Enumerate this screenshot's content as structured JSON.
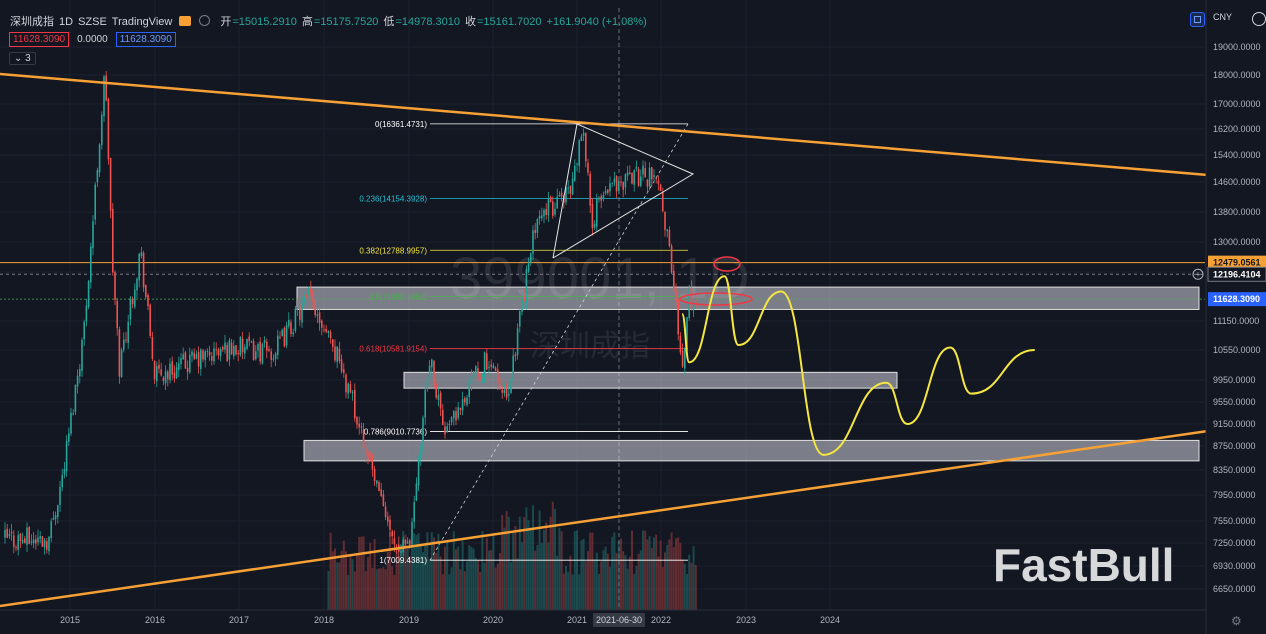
{
  "header": {
    "symbol": "深圳成指",
    "interval": "1D",
    "exchange": "SZSE",
    "platform": "TradingView",
    "open_label": "开",
    "open": "=15015.2910",
    "high_label": "高",
    "high": "=15175.7520",
    "low_label": "低",
    "low": "=14978.3010",
    "close_label": "收",
    "close": "=15161.7020",
    "change": "+161.9040 (+1.08%)"
  },
  "indicators": {
    "value1": "11628.3090",
    "value2": "0.0000",
    "value3": "11628.3090",
    "collapse_label": "3"
  },
  "currency": "CNY",
  "watermark": {
    "code": "399001",
    "interval": "1D",
    "name": "深圳成指"
  },
  "brand": "FastBull",
  "crosshair_date": "2021-06-30",
  "price_badges": [
    {
      "value": "12479.0561",
      "color": "#f7a035"
    },
    {
      "value": "12196.4104",
      "color": "#131722"
    },
    {
      "value": "11628.3090",
      "color": "#2962ff"
    }
  ],
  "colors": {
    "background": "#131722",
    "up": "#26a69a",
    "down": "#ef5350",
    "trendline": "#f7a035",
    "forecast": "#f5e642",
    "ellipse": "#f23645"
  },
  "chart_data": {
    "type": "candlestick",
    "y_axis_scale": "log",
    "ylim": [
      6400,
      20000
    ],
    "y_ticks": [
      "19000.0000",
      "18000.0000",
      "17000.0000",
      "16200.0000",
      "15400.0000",
      "14600.0000",
      "13800.0000",
      "13000.0000",
      "12250.0000",
      "11150.0000",
      "10550.0000",
      "9950.0000",
      "9550.0000",
      "9150.0000",
      "8750.0000",
      "8350.0000",
      "7950.0000",
      "7550.0000",
      "7250.0000",
      "6930.0000",
      "6650.0000"
    ],
    "x_labels": [
      "2015",
      "2016",
      "2017",
      "2018",
      "2019",
      "2020",
      "2021",
      "2022",
      "2023",
      "2024"
    ],
    "price_path": [
      {
        "date": "2014-10",
        "close": 7300
      },
      {
        "date": "2014-12",
        "close": 8300
      },
      {
        "date": "2015-03",
        "close": 11000
      },
      {
        "date": "2015-06",
        "close": 18200
      },
      {
        "date": "2015-07",
        "close": 12500
      },
      {
        "date": "2015-08",
        "close": 10200
      },
      {
        "date": "2015-11",
        "close": 12800
      },
      {
        "date": "2016-01",
        "close": 10000
      },
      {
        "date": "2016-06",
        "close": 10300
      },
      {
        "date": "2016-12",
        "close": 10600
      },
      {
        "date": "2017-06",
        "close": 10500
      },
      {
        "date": "2017-11",
        "close": 11700
      },
      {
        "date": "2018-02",
        "close": 10800
      },
      {
        "date": "2018-06",
        "close": 9200
      },
      {
        "date": "2018-10",
        "close": 7500
      },
      {
        "date": "2019-01",
        "close": 7100
      },
      {
        "date": "2019-04",
        "close": 10500
      },
      {
        "date": "2019-06",
        "close": 9000
      },
      {
        "date": "2019-12",
        "close": 10400
      },
      {
        "date": "2020-03",
        "close": 9600
      },
      {
        "date": "2020-07",
        "close": 13500
      },
      {
        "date": "2020-12",
        "close": 14400
      },
      {
        "date": "2021-02",
        "close": 16200
      },
      {
        "date": "2021-03",
        "close": 13600
      },
      {
        "date": "2021-06",
        "close": 14600
      },
      {
        "date": "2021-09",
        "close": 14800
      },
      {
        "date": "2021-12",
        "close": 14800
      },
      {
        "date": "2022-02",
        "close": 13200
      },
      {
        "date": "2022-04",
        "close": 10300
      },
      {
        "date": "2022-05",
        "close": 11628
      }
    ],
    "fibonacci": [
      {
        "label": "0(16361.4731)",
        "value": 16361.4731,
        "color": "#ffffff"
      },
      {
        "label": "0.236(14154.3928)",
        "value": 14154.3928,
        "color": "#22c1d6"
      },
      {
        "label": "0.382(12788.9957)",
        "value": 12788.9957,
        "color": "#f5e642"
      },
      {
        "label": "0.5(11685.4656)",
        "value": 11685.4656,
        "color": "#4caf50"
      },
      {
        "label": "0.618(10581.9154)",
        "value": 10581.9154,
        "color": "#f23645"
      },
      {
        "label": "0.786(9010.7736)",
        "value": 9010.7736,
        "color": "#ffffff"
      },
      {
        "label": "1(7009.4381)",
        "value": 7009.4381,
        "color": "#ffffff"
      }
    ],
    "zones": [
      {
        "from": 11400,
        "to": 11900
      },
      {
        "from": 9800,
        "to": 10100
      },
      {
        "from": 8500,
        "to": 8850
      }
    ],
    "horizontal_lines": [
      12479.0561,
      12196.4104
    ],
    "forecast_path": [
      {
        "date": "2022-04",
        "value": 11300
      },
      {
        "date": "2022-05",
        "value": 10300
      },
      {
        "date": "2022-10",
        "value": 12150
      },
      {
        "date": "2022-12",
        "value": 10650
      },
      {
        "date": "2023-06",
        "value": 11800
      },
      {
        "date": "2023-12",
        "value": 8600
      },
      {
        "date": "2024-09",
        "value": 9900
      },
      {
        "date": "2024-12",
        "value": 9150
      },
      {
        "date": "2025-06",
        "value": 10600
      },
      {
        "date": "2025-09",
        "value": 9700
      },
      {
        "date": "2026-06",
        "value": 10550
      }
    ]
  }
}
